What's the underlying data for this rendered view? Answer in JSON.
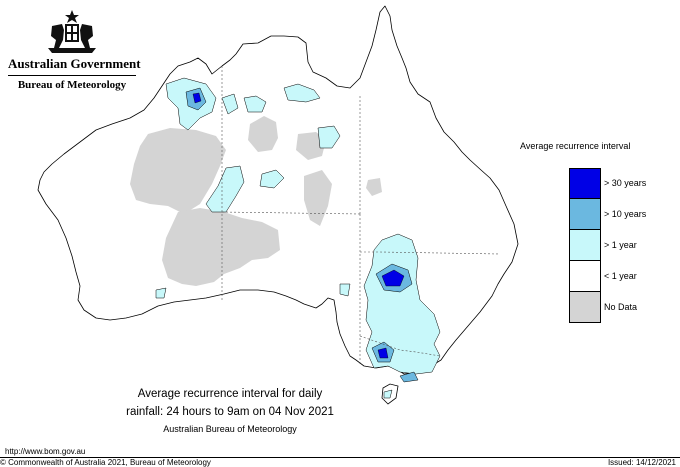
{
  "header": {
    "government": "Australian Government",
    "bureau": "Bureau of Meteorology"
  },
  "legend": {
    "title": "Average recurrence interval",
    "items": [
      {
        "label": "> 30 years",
        "color": "#0000e6"
      },
      {
        "label": "> 10 years",
        "color": "#6bb8e0"
      },
      {
        "label": "> 1 year",
        "color": "#c8f8fa"
      },
      {
        "label": "< 1 year",
        "color": "#ffffff"
      },
      {
        "label": "No Data",
        "color": "#d4d4d4"
      }
    ]
  },
  "caption": {
    "line1": "Average recurrence interval for daily",
    "line2": "rainfall: 24 hours to 9am on 04 Nov 2021",
    "line3": "Australian Bureau of Meteorology"
  },
  "footer": {
    "url": "http://www.bom.gov.au",
    "copyright": "© Commonwealth of Australia 2021, Bureau of Meteorology",
    "issued": "Issued: 14/12/2021"
  },
  "colors": {
    "nodata": "#d4d4d4",
    "above1": "#c8f8fa",
    "above10": "#6bb8e0",
    "above30": "#0000e6",
    "outline": "#000000"
  }
}
